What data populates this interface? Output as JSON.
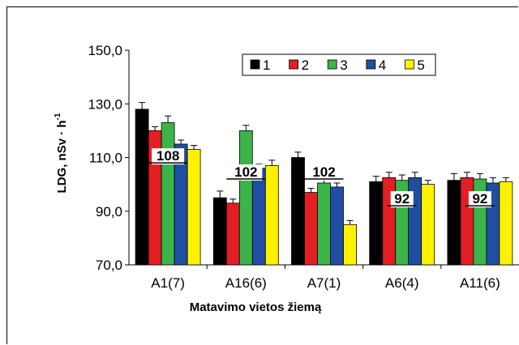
{
  "chart_data": {
    "type": "bar",
    "title": "",
    "xlabel": "Matavimo vietos žiemą",
    "ylabel_main": "LDG, nSv · h",
    "ylabel_sup": "-1",
    "ylim": [
      70,
      150
    ],
    "yticks": [
      70,
      90,
      110,
      130,
      150
    ],
    "ytick_labels": [
      "70,0",
      "90,0",
      "110,0",
      "130,0",
      "150,0"
    ],
    "grid": false,
    "legend_position": "top-right",
    "categories": [
      "A1(7)",
      "A16(6)",
      "A7(1)",
      "A6(4)",
      "A11(6)"
    ],
    "series": [
      {
        "name": "1",
        "color": "#000000",
        "values": [
          128,
          95,
          110,
          101,
          101.5
        ],
        "errors": [
          2.5,
          2.5,
          2,
          2,
          2.5
        ]
      },
      {
        "name": "2",
        "color": "#e31e24",
        "values": [
          120,
          93,
          97,
          102.5,
          102.5
        ],
        "errors": [
          1.5,
          1.5,
          1.5,
          2,
          2
        ]
      },
      {
        "name": "3",
        "color": "#3bb54a",
        "values": [
          123,
          120,
          100.5,
          101.5,
          102
        ],
        "errors": [
          2.5,
          2,
          1,
          2,
          2
        ]
      },
      {
        "name": "4",
        "color": "#1f4ea3",
        "values": [
          115,
          106,
          99,
          102.5,
          100.5
        ],
        "errors": [
          1.5,
          1.5,
          1.5,
          2,
          2
        ]
      },
      {
        "name": "5",
        "color": "#fff200",
        "values": [
          113,
          107,
          85,
          100,
          101
        ],
        "errors": [
          1.5,
          2,
          1.5,
          1.5,
          1.5
        ]
      }
    ],
    "annotations": [
      {
        "text": "108",
        "category": "A1(7)",
        "y": 108
      },
      {
        "text": "102",
        "category": "A16(6)",
        "y": 102
      },
      {
        "text": "102",
        "category": "A7(1)",
        "y": 102
      },
      {
        "text": "92",
        "category": "A6(4)",
        "y": 92
      },
      {
        "text": "92",
        "category": "A11(6)",
        "y": 92
      }
    ]
  }
}
